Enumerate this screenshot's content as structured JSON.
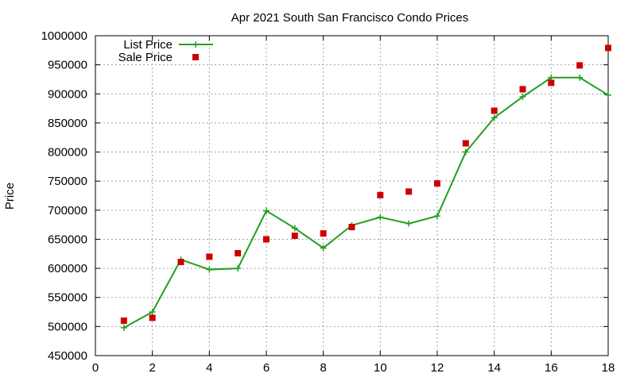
{
  "chart_data": {
    "type": "line",
    "title": "Apr 2021 South San Francisco Condo Prices",
    "xlabel": "",
    "ylabel": "Price",
    "xlim": [
      0,
      18
    ],
    "ylim": [
      450000,
      1000000
    ],
    "x_ticks": [
      "0",
      "2",
      "4",
      "6",
      "8",
      "10",
      "12",
      "14",
      "16",
      "18"
    ],
    "y_ticks": [
      "450000",
      "500000",
      "550000",
      "600000",
      "650000",
      "700000",
      "750000",
      "800000",
      "850000",
      "900000",
      "950000",
      "1000000"
    ],
    "grid": true,
    "legend_position": "top-left",
    "series": [
      {
        "name": "List Price",
        "style": "line-with-plus-markers",
        "color": "#22a01e",
        "x": [
          1,
          2,
          3,
          4,
          5,
          6,
          7,
          8,
          9,
          10,
          11,
          12,
          13,
          14,
          15,
          16,
          17,
          18
        ],
        "y": [
          498000,
          525000,
          615000,
          598000,
          600000,
          699000,
          669000,
          635000,
          674000,
          688000,
          677000,
          690000,
          800000,
          859000,
          895000,
          928000,
          928000,
          898000
        ]
      },
      {
        "name": "Sale Price",
        "style": "square-points",
        "color": "#cc0000",
        "x": [
          1,
          2,
          3,
          4,
          5,
          6,
          7,
          8,
          9,
          10,
          11,
          12,
          13,
          14,
          15,
          16,
          17,
          18
        ],
        "y": [
          510000,
          515000,
          611000,
          620000,
          626000,
          650000,
          656000,
          660000,
          671000,
          726000,
          732000,
          746000,
          815000,
          871000,
          908000,
          919000,
          949000,
          979000
        ]
      }
    ]
  }
}
